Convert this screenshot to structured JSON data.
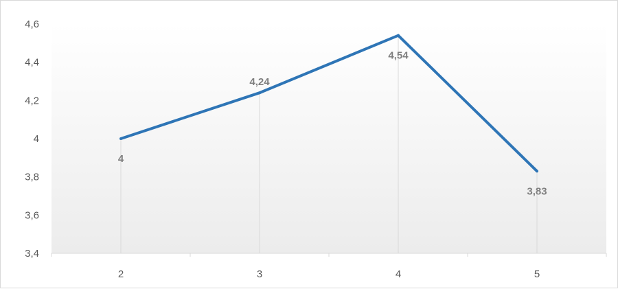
{
  "chart_data": {
    "type": "line",
    "categories": [
      "2",
      "3",
      "4",
      "5"
    ],
    "series": [
      {
        "values": [
          4,
          4.24,
          4.54,
          3.83
        ],
        "color": "#2e75b6"
      }
    ],
    "data_labels": [
      "4",
      "4,24",
      "4,54",
      "3,83"
    ],
    "y_ticks": [
      "3,4",
      "3,6",
      "3,8",
      "4",
      "4,2",
      "4,4",
      "4,6"
    ],
    "ylim": [
      3.4,
      4.6
    ],
    "title": "",
    "xlabel": "",
    "ylabel": "",
    "grid": false,
    "drop_lines": true,
    "plot_background": "gradient-white-to-light-gray"
  }
}
